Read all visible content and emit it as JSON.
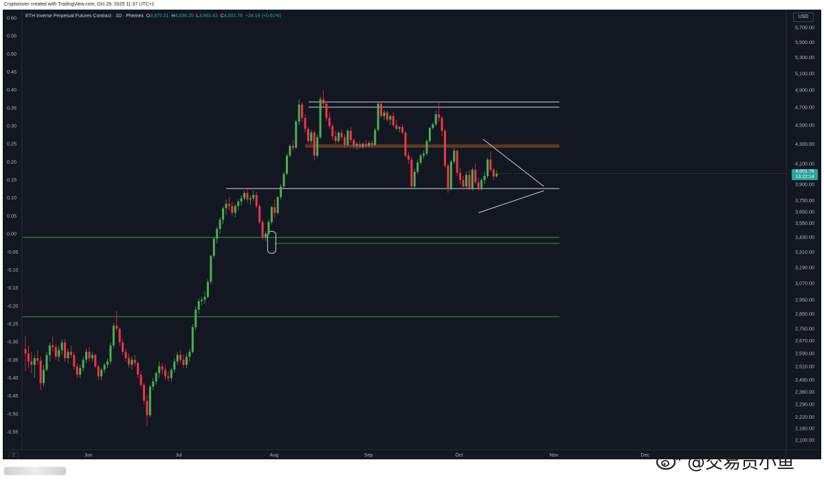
{
  "caption": "Cryptorover created with TradingView.com, Oct 29, 2025 11:37 UTC+1",
  "legend": {
    "title": "ETH Inverse Perpetual Futures Contract · 1D · Phemex",
    "o_label": "O",
    "o_value": "3,975.21",
    "h_label": "H",
    "h_value": "4,036.25",
    "l_label": "L",
    "l_value": "3,963.43",
    "c_label": "C",
    "c_value": "4,001.76",
    "change": "+24.19 (+0.61%)"
  },
  "currency": "USD",
  "price_tag": {
    "price": "4,001.76",
    "countdown": "13:22:14"
  },
  "zoom_label": "Z",
  "watermark": "@交易员小鱼",
  "colors": {
    "background": "#131722",
    "up": "#26a69a",
    "down": "#ef5350",
    "up_bright": "#4caf50",
    "down_bright": "#f23645",
    "resistance_band": "#6b3e22",
    "support_green": "#4caf50"
  },
  "chart_data": {
    "type": "candlestick",
    "x_tick_labels": [
      "Jun",
      "Jul",
      "Aug",
      "Sep",
      "Oct",
      "Nov",
      "Dec"
    ],
    "left_axis": {
      "labels": [
        "0.60",
        "0.55",
        "0.50",
        "0.45",
        "0.40",
        "0.35",
        "0.30",
        "0.25",
        "0.20",
        "0.15",
        "0.10",
        "0.05",
        "0.00",
        "-0.05",
        "-0.10",
        "-0.15",
        "-0.20",
        "-0.25",
        "-0.30",
        "-0.35",
        "-0.40",
        "-0.45",
        "-0.50",
        "-0.55"
      ],
      "range": [
        -0.6,
        0.6
      ]
    },
    "right_axis": {
      "labels": [
        "5,700.00",
        "5,500.00",
        "5,300.00",
        "5,100.00",
        "4,900.00",
        "4,700.00",
        "4,500.00",
        "4,300.00",
        "4,100.00",
        "3,900.00",
        "3,750.00",
        "3,650.00",
        "3,550.00",
        "3,430.00",
        "3,310.00",
        "3,190.00",
        "3,070.00",
        "2,950.00",
        "2,850.00",
        "2,750.00",
        "2,670.00",
        "2,590.00",
        "2,510.00",
        "2,430.00",
        "2,360.00",
        "2,290.00",
        "2,220.00",
        "2,160.00",
        "2,100.00"
      ],
      "scale": "log"
    },
    "last_price": 4001.76,
    "levels": {
      "top_resistance": [
        4700,
        4760
      ],
      "resistance_band": 4275,
      "range_support": 3860,
      "green_support_upper": 3430,
      "green_support_lower": 3380,
      "green_support_low": 2830
    },
    "wedge": {
      "upper": [
        [
          4350,
          "Oct 10"
        ],
        [
          3880,
          "Oct 28"
        ]
      ],
      "lower": [
        [
          3700,
          "Oct 7"
        ],
        [
          3840,
          "Oct 28"
        ]
      ]
    },
    "candles": [
      [
        2617,
        2700,
        2480,
        2590
      ],
      [
        2590,
        2640,
        2500,
        2540
      ],
      [
        2540,
        2600,
        2470,
        2520
      ],
      [
        2520,
        2580,
        2440,
        2560
      ],
      [
        2560,
        2610,
        2520,
        2545
      ],
      [
        2545,
        2570,
        2370,
        2410
      ],
      [
        2410,
        2520,
        2390,
        2490
      ],
      [
        2490,
        2600,
        2480,
        2580
      ],
      [
        2580,
        2660,
        2540,
        2640
      ],
      [
        2640,
        2700,
        2600,
        2630
      ],
      [
        2630,
        2650,
        2550,
        2570
      ],
      [
        2570,
        2640,
        2540,
        2610
      ],
      [
        2610,
        2680,
        2580,
        2660
      ],
      [
        2660,
        2680,
        2540,
        2560
      ],
      [
        2560,
        2620,
        2530,
        2600
      ],
      [
        2600,
        2640,
        2560,
        2580
      ],
      [
        2580,
        2600,
        2490,
        2510
      ],
      [
        2510,
        2530,
        2440,
        2460
      ],
      [
        2460,
        2520,
        2440,
        2500
      ],
      [
        2500,
        2570,
        2480,
        2550
      ],
      [
        2550,
        2620,
        2530,
        2600
      ],
      [
        2600,
        2630,
        2540,
        2560
      ],
      [
        2560,
        2600,
        2540,
        2580
      ],
      [
        2580,
        2590,
        2500,
        2510
      ],
      [
        2510,
        2520,
        2430,
        2450
      ],
      [
        2450,
        2500,
        2430,
        2490
      ],
      [
        2490,
        2530,
        2470,
        2520
      ],
      [
        2520,
        2560,
        2500,
        2540
      ],
      [
        2540,
        2660,
        2520,
        2640
      ],
      [
        2640,
        2790,
        2620,
        2770
      ],
      [
        2770,
        2870,
        2730,
        2750
      ],
      [
        2750,
        2760,
        2640,
        2660
      ],
      [
        2660,
        2680,
        2580,
        2600
      ],
      [
        2600,
        2620,
        2540,
        2560
      ],
      [
        2560,
        2590,
        2500,
        2520
      ],
      [
        2520,
        2570,
        2490,
        2550
      ],
      [
        2550,
        2580,
        2510,
        2530
      ],
      [
        2530,
        2540,
        2440,
        2460
      ],
      [
        2460,
        2480,
        2390,
        2400
      ],
      [
        2400,
        2410,
        2290,
        2310
      ],
      [
        2310,
        2340,
        2170,
        2230
      ],
      [
        2230,
        2400,
        2220,
        2390
      ],
      [
        2390,
        2440,
        2370,
        2420
      ],
      [
        2420,
        2480,
        2400,
        2470
      ],
      [
        2470,
        2540,
        2440,
        2510
      ],
      [
        2510,
        2530,
        2460,
        2490
      ],
      [
        2490,
        2520,
        2430,
        2450
      ],
      [
        2450,
        2480,
        2420,
        2440
      ],
      [
        2440,
        2500,
        2420,
        2490
      ],
      [
        2490,
        2560,
        2470,
        2540
      ],
      [
        2540,
        2600,
        2520,
        2580
      ],
      [
        2580,
        2610,
        2530,
        2550
      ],
      [
        2550,
        2580,
        2500,
        2520
      ],
      [
        2520,
        2590,
        2500,
        2570
      ],
      [
        2570,
        2620,
        2540,
        2600
      ],
      [
        2600,
        2780,
        2590,
        2760
      ],
      [
        2760,
        2900,
        2740,
        2880
      ],
      [
        2880,
        2960,
        2850,
        2940
      ],
      [
        2940,
        2970,
        2910,
        2950
      ],
      [
        2950,
        3010,
        2920,
        2970
      ],
      [
        2970,
        3100,
        2960,
        3080
      ],
      [
        3080,
        3290,
        3060,
        3280
      ],
      [
        3280,
        3430,
        3260,
        3420
      ],
      [
        3420,
        3520,
        3380,
        3500
      ],
      [
        3500,
        3600,
        3460,
        3580
      ],
      [
        3580,
        3700,
        3540,
        3680
      ],
      [
        3680,
        3760,
        3620,
        3720
      ],
      [
        3720,
        3780,
        3660,
        3700
      ],
      [
        3700,
        3740,
        3610,
        3640
      ],
      [
        3640,
        3720,
        3600,
        3700
      ],
      [
        3700,
        3760,
        3660,
        3740
      ],
      [
        3740,
        3800,
        3700,
        3770
      ],
      [
        3770,
        3840,
        3750,
        3820
      ],
      [
        3820,
        3870,
        3730,
        3760
      ],
      [
        3760,
        3800,
        3710,
        3770
      ],
      [
        3770,
        3840,
        3750,
        3800
      ],
      [
        3800,
        3830,
        3680,
        3700
      ],
      [
        3700,
        3720,
        3540,
        3560
      ],
      [
        3560,
        3580,
        3410,
        3430
      ],
      [
        3430,
        3480,
        3400,
        3460
      ],
      [
        3460,
        3580,
        3440,
        3560
      ],
      [
        3560,
        3700,
        3540,
        3690
      ],
      [
        3690,
        3760,
        3600,
        3640
      ],
      [
        3640,
        3790,
        3620,
        3780
      ],
      [
        3780,
        3900,
        3760,
        3880
      ],
      [
        3880,
        4020,
        3860,
        4000
      ],
      [
        4000,
        4200,
        3990,
        4180
      ],
      [
        4180,
        4300,
        4160,
        4280
      ],
      [
        4280,
        4340,
        4230,
        4260
      ],
      [
        4260,
        4560,
        4250,
        4540
      ],
      [
        4540,
        4790,
        4500,
        4730
      ],
      [
        4730,
        4760,
        4540,
        4580
      ],
      [
        4580,
        4620,
        4420,
        4460
      ],
      [
        4460,
        4480,
        4300,
        4330
      ],
      [
        4330,
        4450,
        4300,
        4420
      ],
      [
        4420,
        4440,
        4130,
        4180
      ],
      [
        4180,
        4400,
        4160,
        4370
      ],
      [
        4370,
        4820,
        4350,
        4790
      ],
      [
        4790,
        4900,
        4700,
        4740
      ],
      [
        4740,
        4760,
        4540,
        4580
      ],
      [
        4580,
        4640,
        4460,
        4490
      ],
      [
        4490,
        4520,
        4340,
        4380
      ],
      [
        4380,
        4440,
        4300,
        4330
      ],
      [
        4330,
        4440,
        4310,
        4420
      ],
      [
        4420,
        4460,
        4340,
        4370
      ],
      [
        4370,
        4400,
        4260,
        4290
      ],
      [
        4290,
        4460,
        4270,
        4440
      ],
      [
        4440,
        4480,
        4310,
        4340
      ],
      [
        4340,
        4360,
        4250,
        4280
      ],
      [
        4280,
        4320,
        4240,
        4300
      ],
      [
        4300,
        4330,
        4250,
        4270
      ],
      [
        4270,
        4320,
        4250,
        4300
      ],
      [
        4300,
        4340,
        4260,
        4280
      ],
      [
        4280,
        4330,
        4260,
        4310
      ],
      [
        4310,
        4340,
        4260,
        4290
      ],
      [
        4290,
        4470,
        4280,
        4450
      ],
      [
        4450,
        4760,
        4430,
        4740
      ],
      [
        4740,
        4760,
        4580,
        4600
      ],
      [
        4600,
        4670,
        4560,
        4640
      ],
      [
        4640,
        4660,
        4540,
        4560
      ],
      [
        4560,
        4620,
        4500,
        4600
      ],
      [
        4600,
        4640,
        4480,
        4500
      ],
      [
        4500,
        4560,
        4440,
        4460
      ],
      [
        4460,
        4490,
        4420,
        4480
      ],
      [
        4480,
        4510,
        4400,
        4420
      ],
      [
        4420,
        4440,
        4160,
        4180
      ],
      [
        4180,
        4220,
        4100,
        4140
      ],
      [
        4140,
        4170,
        3860,
        3880
      ],
      [
        3880,
        4050,
        3860,
        4020
      ],
      [
        4020,
        4140,
        4000,
        4110
      ],
      [
        4110,
        4200,
        4090,
        4180
      ],
      [
        4180,
        4230,
        4150,
        4200
      ],
      [
        4200,
        4350,
        4180,
        4330
      ],
      [
        4330,
        4480,
        4310,
        4470
      ],
      [
        4470,
        4530,
        4450,
        4510
      ],
      [
        4510,
        4660,
        4490,
        4620
      ],
      [
        4620,
        4760,
        4540,
        4580
      ],
      [
        4580,
        4600,
        4380,
        4440
      ],
      [
        4440,
        4460,
        4060,
        4080
      ],
      [
        4080,
        4100,
        3820,
        3860
      ],
      [
        3860,
        4140,
        3840,
        4120
      ],
      [
        4120,
        4260,
        4100,
        4230
      ],
      [
        4230,
        4240,
        3980,
        4010
      ],
      [
        4010,
        4060,
        3900,
        3940
      ],
      [
        3940,
        3980,
        3850,
        3880
      ],
      [
        3880,
        4020,
        3860,
        3990
      ],
      [
        3990,
        4040,
        3840,
        3860
      ],
      [
        3860,
        4060,
        3840,
        4040
      ],
      [
        4040,
        4100,
        3900,
        3920
      ],
      [
        3920,
        3960,
        3840,
        3860
      ],
      [
        3860,
        3960,
        3840,
        3940
      ],
      [
        3940,
        4020,
        3900,
        3980
      ],
      [
        3980,
        4160,
        3960,
        4140
      ],
      [
        4140,
        4220,
        4020,
        4040
      ],
      [
        4040,
        4060,
        3940,
        3975
      ],
      [
        3975,
        4036,
        3963,
        4002
      ]
    ]
  }
}
